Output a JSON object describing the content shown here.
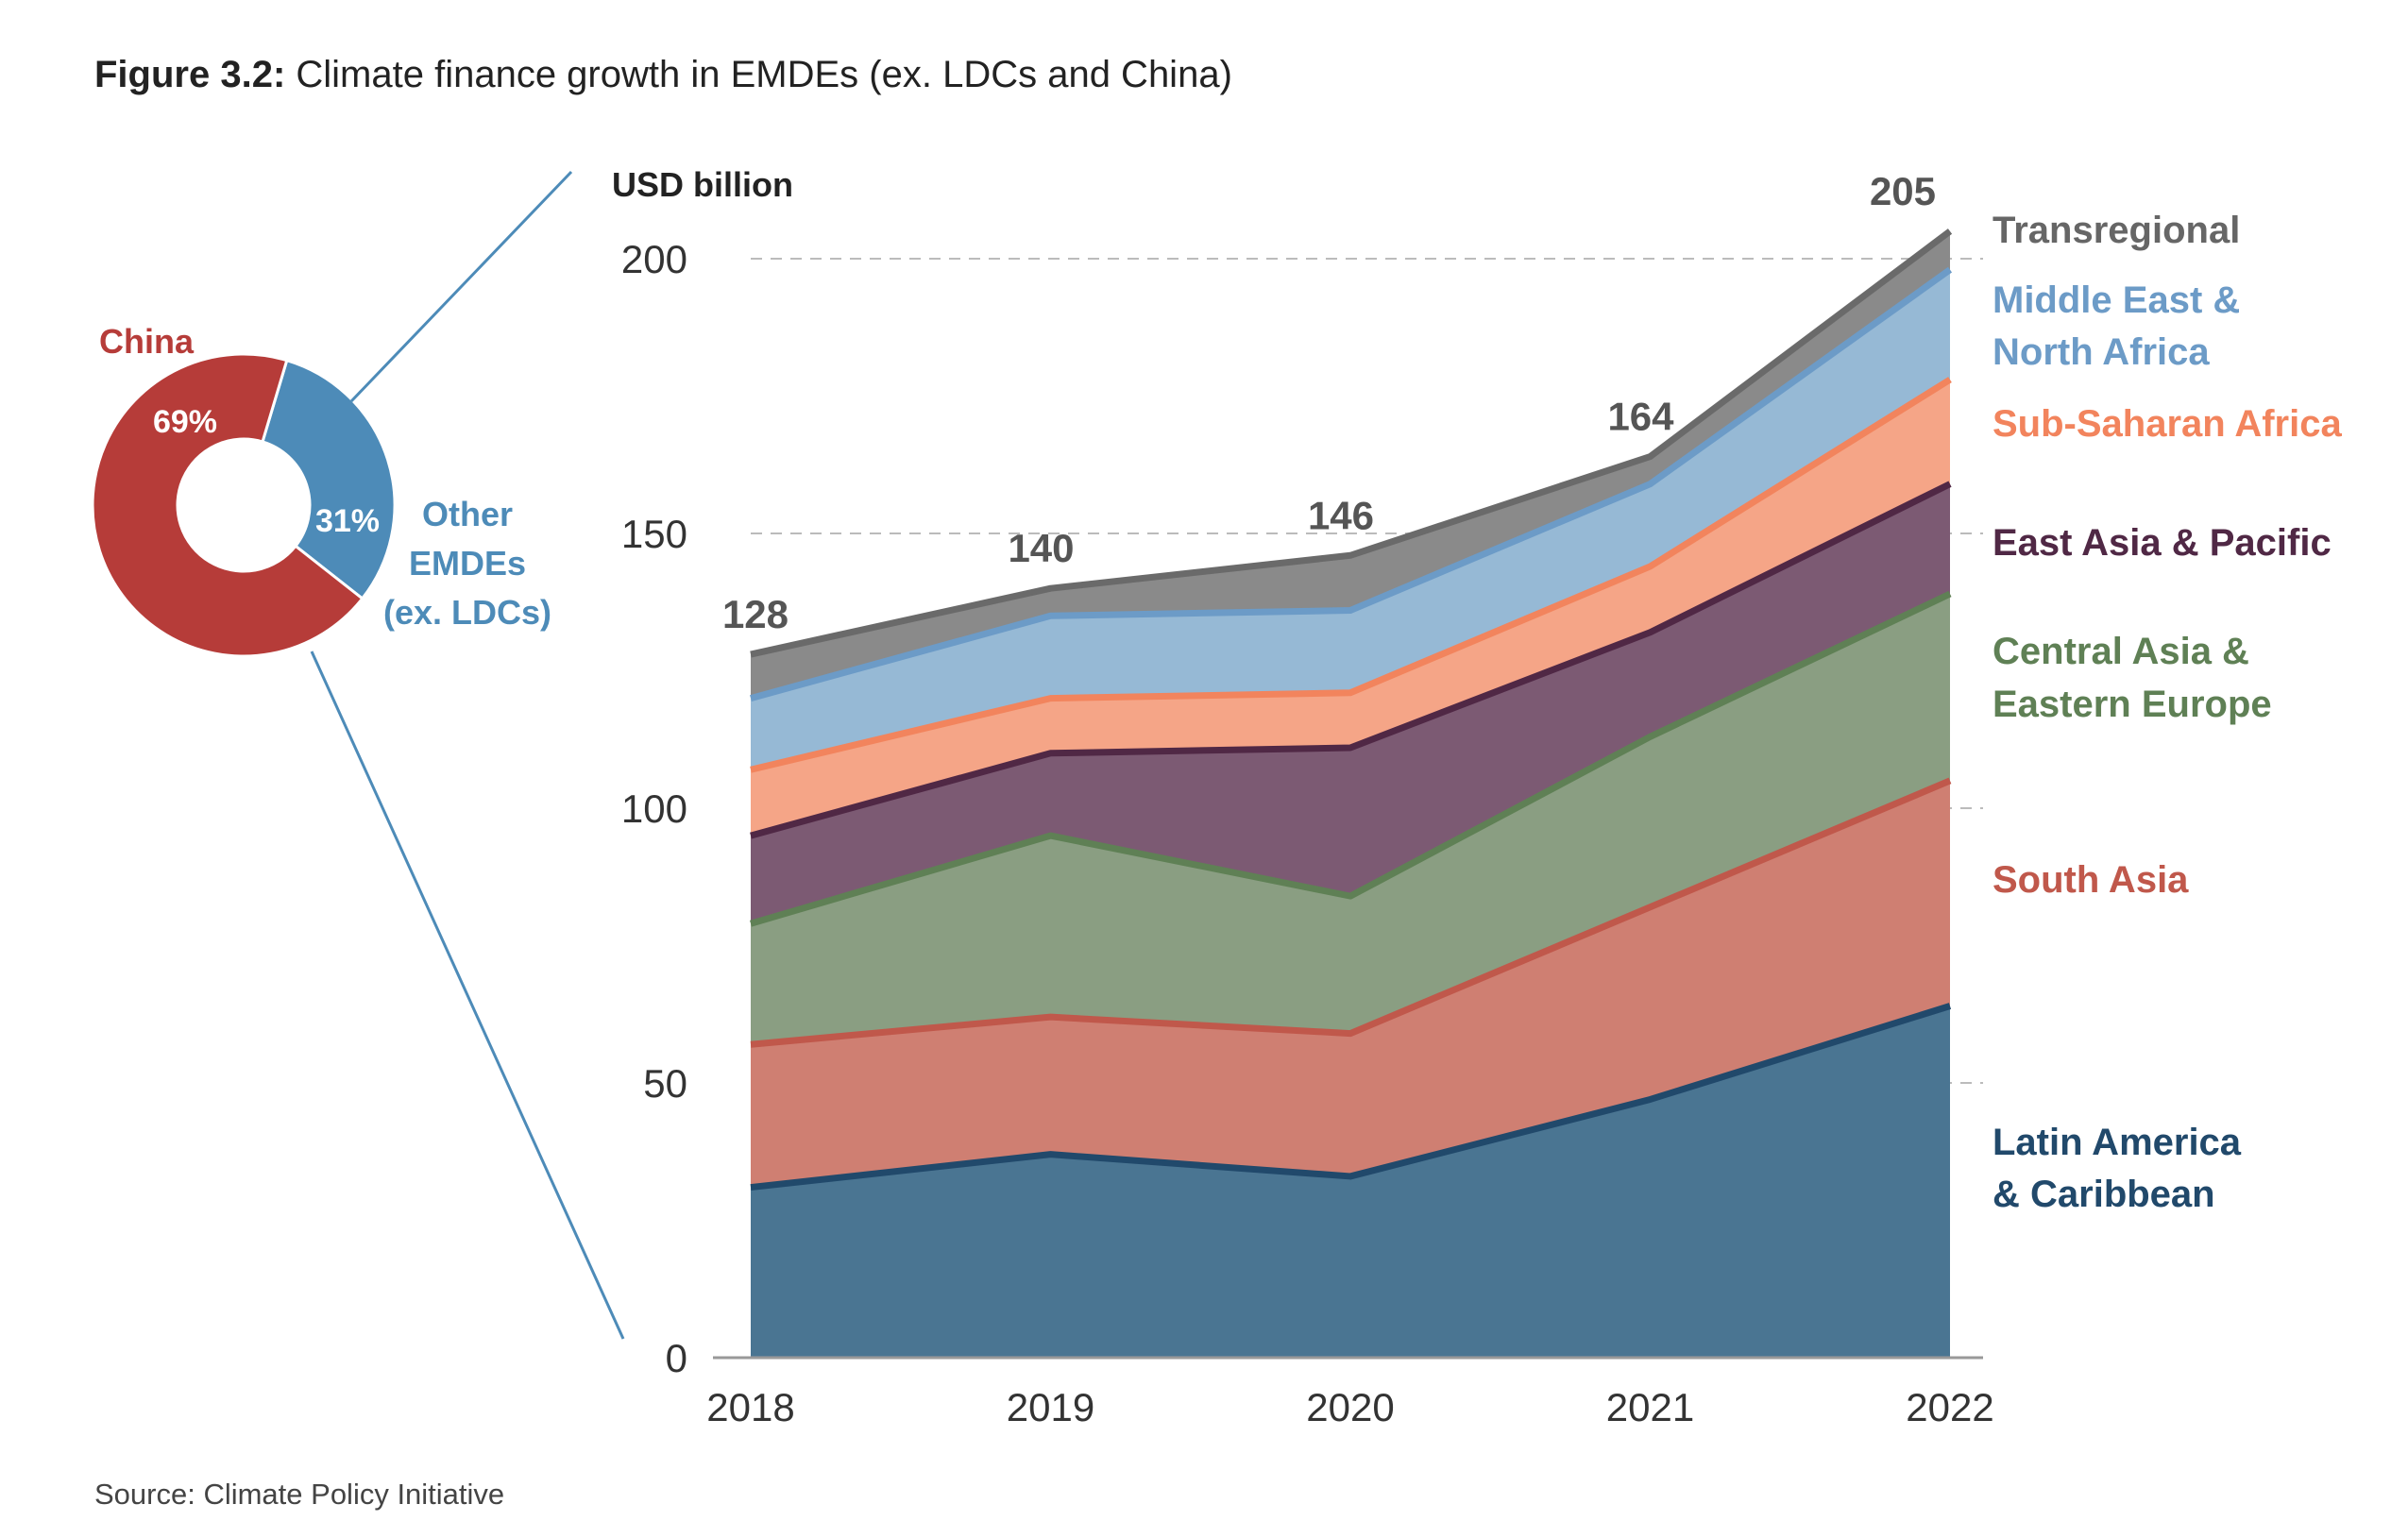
{
  "figure": {
    "label": "Figure 3.2:",
    "title": " Climate finance growth in EMDEs (ex. LDCs and China)",
    "source": "Source: Climate Policy Initiative"
  },
  "colors": {
    "china": "#b63c39",
    "other_emdes": "#4d8bb8",
    "connector": "#4d8bb8",
    "axis": "#999999",
    "grid": "#bbbbbb",
    "text": "#333333",
    "total": "#555555"
  },
  "chart_data": [
    {
      "type": "pie",
      "variant": "donut",
      "slices": [
        {
          "name": "China",
          "value": 69,
          "value_label": "69%",
          "color": "#b63c39"
        },
        {
          "name": "Other EMDEs (ex. LDCs)",
          "value": 31,
          "value_label": "31%",
          "color": "#4d8bb8"
        }
      ],
      "labels": {
        "china": "China",
        "other_line1": "Other",
        "other_line2": "EMDEs",
        "other_line3": "(ex. LDCs)"
      }
    },
    {
      "type": "area",
      "stacked": true,
      "ylabel": "USD billion",
      "ylim": [
        0,
        205
      ],
      "yticks": [
        0,
        50,
        100,
        150,
        200
      ],
      "grid": "horizontal dashed",
      "categories": [
        "2018",
        "2019",
        "2020",
        "2021",
        "2022"
      ],
      "totals": [
        128,
        140,
        146,
        164,
        205
      ],
      "series": [
        {
          "name": "Latin America & Caribbean",
          "label_lines": [
            "Latin America",
            "& Caribbean"
          ],
          "values": [
            31,
            37,
            33,
            47,
            64
          ],
          "fill": "#4a7592",
          "line": "#21496b",
          "label_color": "#21496b"
        },
        {
          "name": "South Asia",
          "label_lines": [
            "South Asia"
          ],
          "values": [
            26,
            25,
            26,
            35,
            41
          ],
          "fill": "#cf7f72",
          "line": "#c0584b",
          "label_color": "#c0584b"
        },
        {
          "name": "Central Asia & Eastern Europe",
          "label_lines": [
            "Central Asia &",
            "Eastern Europe"
          ],
          "values": [
            22,
            33,
            25,
            31,
            34
          ],
          "fill": "#8a9e82",
          "line": "#5f8055",
          "label_color": "#5f8055"
        },
        {
          "name": "East Asia & Pacific",
          "label_lines": [
            "East Asia & Pacific"
          ],
          "values": [
            16,
            15,
            27,
            19,
            20
          ],
          "fill": "#7c5a73",
          "line": "#502845",
          "label_color": "#502845"
        },
        {
          "name": "Sub-Saharan Africa",
          "label_lines": [
            "Sub-Saharan Africa"
          ],
          "values": [
            12,
            10,
            10,
            12,
            19
          ],
          "fill": "#f5a587",
          "line": "#f2845d",
          "label_color": "#f2845d"
        },
        {
          "name": "Middle East & North Africa",
          "label_lines": [
            "Middle East &",
            "North Africa"
          ],
          "values": [
            13,
            15,
            15,
            15,
            20
          ],
          "fill": "#96b9d5",
          "line": "#6c9bc7",
          "label_color": "#6c9bc7"
        },
        {
          "name": "Transregional",
          "label_lines": [
            "Transregional"
          ],
          "values": [
            8,
            5,
            10,
            5,
            7
          ],
          "fill": "#8a8a8a",
          "line": "#6a6a6a",
          "label_color": "#666666"
        }
      ]
    }
  ]
}
